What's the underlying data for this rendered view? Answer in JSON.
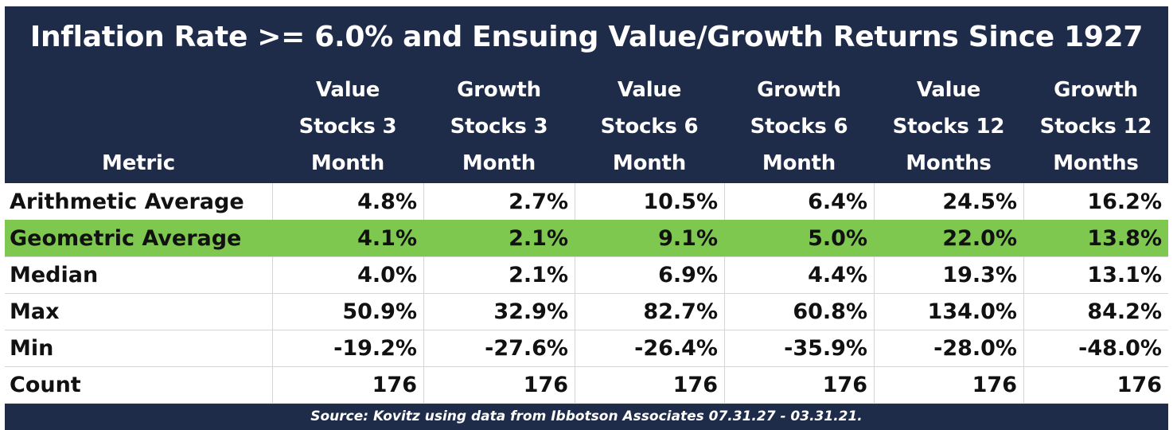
{
  "chart_data": {
    "type": "table",
    "title": "Inflation Rate >= 6.0% and Ensuing Value/Growth Returns Since 1927",
    "columns": [
      "Metric",
      "Value\nStocks 3\nMonth",
      "Growth\nStocks 3\nMonth",
      "Value\nStocks 6\nMonth",
      "Growth\nStocks 6\nMonth",
      "Value\nStocks 12\nMonths",
      "Growth\nStocks 12\nMonths"
    ],
    "rows": [
      {
        "metric": "Arithmetic Average",
        "values": [
          "4.8%",
          "2.7%",
          "10.5%",
          "6.4%",
          "24.5%",
          "16.2%"
        ],
        "highlight": false
      },
      {
        "metric": "Geometric Average",
        "values": [
          "4.1%",
          "2.1%",
          "9.1%",
          "5.0%",
          "22.0%",
          "13.8%"
        ],
        "highlight": true
      },
      {
        "metric": "Median",
        "values": [
          "4.0%",
          "2.1%",
          "6.9%",
          "4.4%",
          "19.3%",
          "13.1%"
        ],
        "highlight": false
      },
      {
        "metric": "Max",
        "values": [
          "50.9%",
          "32.9%",
          "82.7%",
          "60.8%",
          "134.0%",
          "84.2%"
        ],
        "highlight": false
      },
      {
        "metric": "Min",
        "values": [
          "-19.2%",
          "-27.6%",
          "-26.4%",
          "-35.9%",
          "-28.0%",
          "-48.0%"
        ],
        "highlight": false
      },
      {
        "metric": "Count",
        "values": [
          "176",
          "176",
          "176",
          "176",
          "176",
          "176"
        ],
        "highlight": false
      }
    ],
    "source": "Source: Kovitz using data from Ibbotson Associates 07.31.27 - 03.31.21."
  },
  "colors": {
    "header_background": "#1f2c49",
    "header_text": "#ffffff",
    "highlight_row": "#7ec850",
    "body_text": "#111111"
  }
}
